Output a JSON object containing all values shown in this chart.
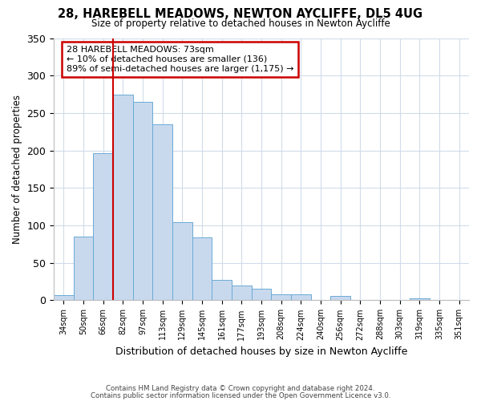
{
  "title1": "28, HAREBELL MEADOWS, NEWTON AYCLIFFE, DL5 4UG",
  "title2": "Size of property relative to detached houses in Newton Aycliffe",
  "xlabel": "Distribution of detached houses by size in Newton Aycliffe",
  "ylabel": "Number of detached properties",
  "categories": [
    "34sqm",
    "50sqm",
    "66sqm",
    "82sqm",
    "97sqm",
    "113sqm",
    "129sqm",
    "145sqm",
    "161sqm",
    "177sqm",
    "193sqm",
    "208sqm",
    "224sqm",
    "240sqm",
    "256sqm",
    "272sqm",
    "288sqm",
    "303sqm",
    "319sqm",
    "335sqm",
    "351sqm"
  ],
  "values": [
    7,
    85,
    196,
    275,
    265,
    235,
    104,
    84,
    27,
    20,
    15,
    8,
    8,
    0,
    6,
    0,
    0,
    0,
    3,
    0,
    1
  ],
  "bar_color": "#c8d9ee",
  "bar_edge_color": "#6aaad4",
  "redline_category_index": 2.5,
  "annotation_title": "28 HAREBELL MEADOWS: 73sqm",
  "annotation_line1": "← 10% of detached houses are smaller (136)",
  "annotation_line2": "89% of semi-detached houses are larger (1,175) →",
  "annotation_box_color": "#ffffff",
  "annotation_box_edge_color": "#cc0000",
  "ylim": [
    0,
    350
  ],
  "yticks": [
    0,
    50,
    100,
    150,
    200,
    250,
    300,
    350
  ],
  "footer1": "Contains HM Land Registry data © Crown copyright and database right 2024.",
  "footer2": "Contains public sector information licensed under the Open Government Licence v3.0."
}
